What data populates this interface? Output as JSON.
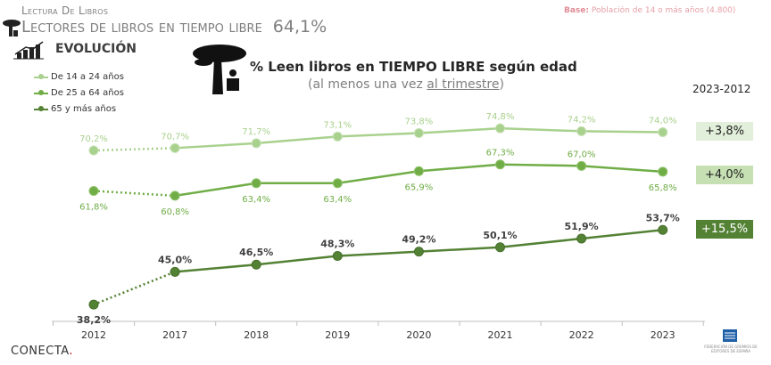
{
  "header": {
    "supertitle": "Lectura De Libros",
    "title": "Lectores de libros en tiempo libre",
    "title_value": "64,1%",
    "base_label": "Base:",
    "base_text": "Población de 14 o más años (4.800)",
    "section": "EVOLUCIÓN"
  },
  "footer": {
    "brand": "CONECTA",
    "brand_dot": ".",
    "publisher_logo_text": "FEDERACIÓN DE GREMIOS DE EDITORES DE ESPAÑA"
  },
  "chart_data": {
    "type": "line",
    "title": "% Leen libros en TIEMPO LIBRE según edad",
    "subtitle_pre": "(al menos una vez ",
    "subtitle_u": "al trimestre",
    "subtitle_post": ")",
    "categories": [
      "2012",
      "2017",
      "2018",
      "2019",
      "2020",
      "2021",
      "2022",
      "2023"
    ],
    "series": [
      {
        "name": "De 14 a 24 años",
        "color": "#a9d18e",
        "values": [
          70.2,
          70.7,
          71.7,
          73.1,
          73.8,
          74.8,
          74.2,
          74.0
        ],
        "labels": [
          "70,2%",
          "70,7%",
          "71,7%",
          "73,1%",
          "73,8%",
          "74,8%",
          "74,2%",
          "74,0%"
        ],
        "change": "+3,8%",
        "change_bg": "#e2efda",
        "change_color": "#222"
      },
      {
        "name": "De 25 a 64 años",
        "color": "#70ad47",
        "values": [
          61.8,
          60.8,
          63.4,
          63.4,
          65.9,
          67.3,
          67.0,
          65.8
        ],
        "labels": [
          "61,8%",
          "60,8%",
          "63,4%",
          "63,4%",
          "65,9%",
          "67,3%",
          "67,0%",
          "65,8%"
        ],
        "change": "+4,0%",
        "change_bg": "#c6e0b4",
        "change_color": "#222"
      },
      {
        "name": "65 y más años",
        "color": "#548235",
        "values": [
          38.2,
          45.0,
          46.5,
          48.3,
          49.2,
          50.1,
          51.9,
          53.7
        ],
        "labels": [
          "38,2%",
          "45,0%",
          "46,5%",
          "48,3%",
          "49,2%",
          "50,1%",
          "51,9%",
          "53,7%"
        ],
        "change": "+15,5%",
        "change_bg": "#548235",
        "change_color": "#fff"
      }
    ],
    "change_header": "2023-2012",
    "grid": false,
    "legend": "top-left"
  }
}
